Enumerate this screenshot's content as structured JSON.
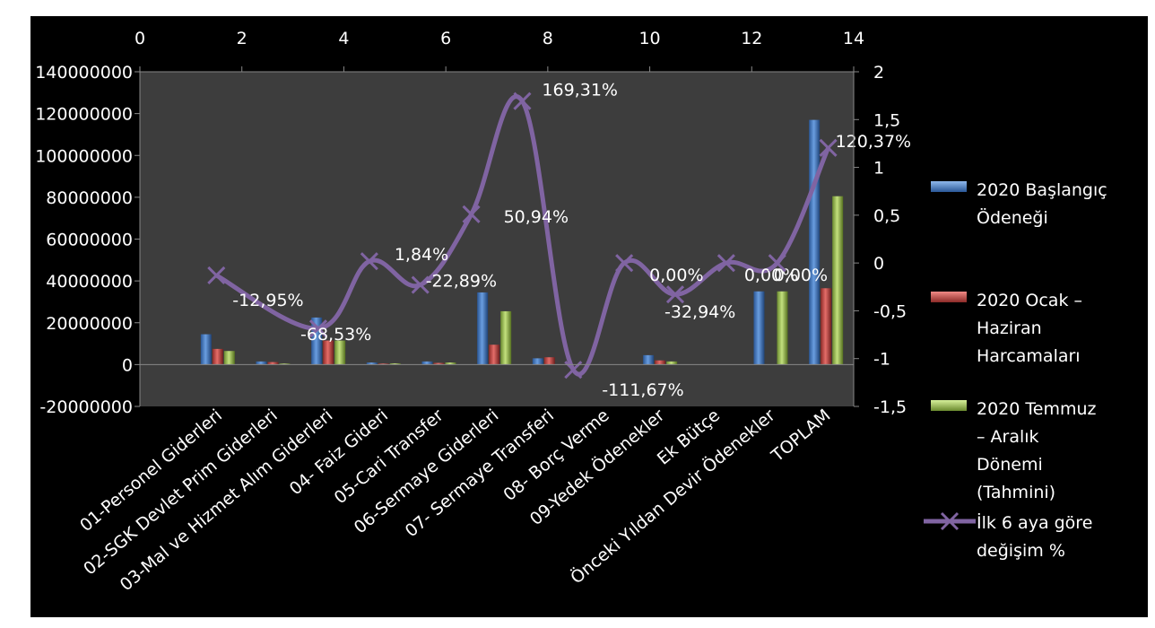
{
  "chart_data": {
    "type": "bar",
    "categories": [
      "01-Personel Giderleri",
      "02-SGK Devlet Prim Giderleri",
      "03-Mal ve Hizmet Alım Giderleri",
      "04- Faiz Gideri",
      "05-Cari Transfer",
      "06-Sermaye Giderleri",
      "07- Sermaye Transferi",
      "08- Borç Verme",
      "09-Yedek Ödenekler",
      "Ek Bütçe",
      "Önceki Yıldan Devir Ödenekler",
      "TOPLAM"
    ],
    "series": [
      {
        "name": "2020 Başlangıç Ödeneği",
        "color": "#4f81bd",
        "type": "bar",
        "values": [
          14500000,
          1500000,
          22500000,
          1000000,
          1500000,
          34500000,
          3000000,
          0,
          4500000,
          0,
          35000000,
          117000000
        ]
      },
      {
        "name": "2020 Ocak – Haziran Harcamaları",
        "color": "#c0504d",
        "type": "bar",
        "values": [
          7500000,
          1200000,
          11500000,
          500000,
          800000,
          9500000,
          3500000,
          0,
          2000000,
          0,
          0,
          36500000
        ]
      },
      {
        "name": "2020 Temmuz – Aralık Dönemi (Tahmini)",
        "color": "#9bbb59",
        "type": "bar",
        "values": [
          6500000,
          500000,
          11500000,
          600000,
          1000000,
          25500000,
          0,
          0,
          1500000,
          0,
          35000000,
          80500000
        ]
      },
      {
        "name": "İlk 6 aya göre değişim %",
        "color": "#8064a2",
        "type": "line",
        "x": [
          1.5,
          3.5,
          4.5,
          5.5,
          6.5,
          7.5,
          8.5,
          9.5,
          10.5,
          11.5,
          12.5,
          13.5
        ],
        "values": [
          -0.1295,
          -0.6853,
          0.0184,
          -0.2289,
          0.5094,
          1.6931,
          -1.1167,
          0.0,
          -0.3294,
          0.0,
          0.0,
          1.2037
        ],
        "labels": [
          "-12,95%",
          "-68,53%",
          "1,84%",
          "-22,89%",
          "50,94%",
          "169,31%",
          "-111,67%",
          "0,00%",
          "-32,94%",
          "0,00%",
          "0,00%",
          "120,37%"
        ]
      }
    ],
    "y_left": {
      "ticks": [
        "-20000000",
        "0",
        "20000000",
        "40000000",
        "60000000",
        "80000000",
        "100000000",
        "120000000",
        "140000000"
      ],
      "ylim": [
        -20000000,
        140000000
      ]
    },
    "y_right": {
      "ticks": [
        "-1,5",
        "-1",
        "-0,5",
        "0",
        "0,5",
        "1",
        "1,5",
        "2"
      ],
      "ylim": [
        -1.5,
        2
      ]
    },
    "x_top": {
      "ticks": [
        "0",
        "2",
        "4",
        "6",
        "8",
        "10",
        "12",
        "14"
      ],
      "xlim": [
        0,
        14
      ]
    },
    "legend": {
      "position": "right"
    },
    "plot_bg": "#3d3d3d",
    "page_bg": "#000000",
    "text_color": "#ffffff"
  }
}
